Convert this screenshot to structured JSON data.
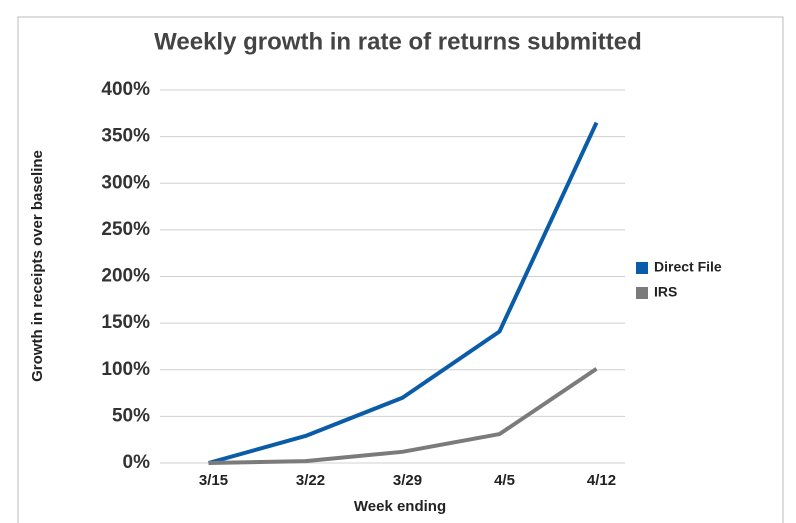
{
  "chart_data": {
    "type": "line",
    "title": "Weekly growth in rate of returns submitted",
    "x_label": "Week ending",
    "y_label": "Growth in receipts over baseline",
    "categories": [
      "3/15",
      "3/22",
      "3/29",
      "4/5",
      "4/12"
    ],
    "series": [
      {
        "name": "Direct File",
        "color": "#0b5ca8",
        "values": [
          0,
          29,
          70,
          141,
          365
        ]
      },
      {
        "name": "IRS",
        "color": "#7b7b7b",
        "values": [
          0,
          2,
          12,
          31,
          101
        ]
      }
    ],
    "ylim": [
      0,
      400
    ],
    "yticks": [
      {
        "value": 0,
        "label": "0%"
      },
      {
        "value": 50,
        "label": "50%"
      },
      {
        "value": 100,
        "label": "100%"
      },
      {
        "value": 150,
        "label": "150%"
      },
      {
        "value": 200,
        "label": "200%"
      },
      {
        "value": 250,
        "label": "250%"
      },
      {
        "value": 300,
        "label": "300%"
      },
      {
        "value": 350,
        "label": "350%"
      },
      {
        "value": 400,
        "label": "400%"
      }
    ],
    "grid": true,
    "legend": "right"
  }
}
